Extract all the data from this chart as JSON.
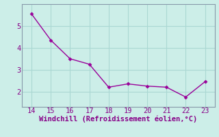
{
  "x": [
    14,
    15,
    16,
    17,
    18,
    19,
    20,
    21,
    22,
    23
  ],
  "y": [
    5.55,
    4.35,
    3.5,
    3.25,
    2.2,
    2.35,
    2.25,
    2.2,
    1.75,
    2.45
  ],
  "line_color": "#990099",
  "marker": "D",
  "marker_size": 2.5,
  "line_width": 1.0,
  "xlabel": "Windchill (Refroidissement éolien,°C)",
  "xlim": [
    13.5,
    23.5
  ],
  "ylim": [
    1.3,
    6.0
  ],
  "xticks": [
    14,
    15,
    16,
    17,
    18,
    19,
    20,
    21,
    22,
    23
  ],
  "yticks": [
    2,
    3,
    4,
    5
  ],
  "bg_color": "#cceee8",
  "grid_color": "#aad8d3",
  "spine_color": "#8899aa",
  "tick_label_fontsize": 7.5,
  "xlabel_fontsize": 7.5,
  "label_color": "#880088"
}
